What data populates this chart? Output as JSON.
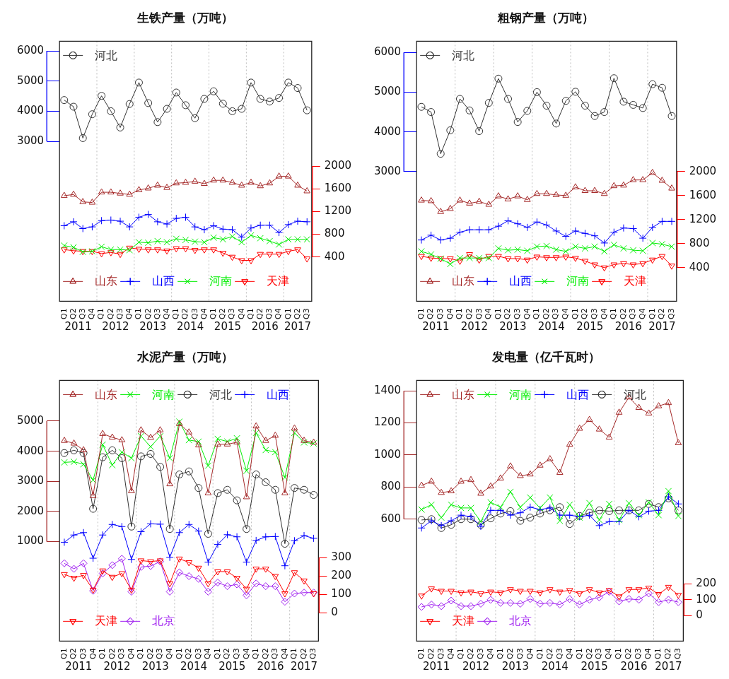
{
  "chart_data": [
    {
      "type": "line",
      "title": "生铁产量（万吨）",
      "categories": [
        "Q1",
        "Q2",
        "Q3",
        "Q4",
        "Q1",
        "Q2",
        "Q3",
        "Q4",
        "Q1",
        "Q2",
        "Q3",
        "Q4",
        "Q1",
        "Q2",
        "Q3",
        "Q4",
        "Q1",
        "Q2",
        "Q3",
        "Q4",
        "Q1",
        "Q2",
        "Q3",
        "Q4",
        "Q1",
        "Q2",
        "Q3"
      ],
      "series": [
        {
          "name": "河北",
          "color": "#333333",
          "marker": "circle",
          "values": [
            4370,
            4150,
            3110,
            3900,
            4510,
            4000,
            3460,
            4240,
            4950,
            4270,
            3640,
            4080,
            4620,
            4200,
            3770,
            4410,
            4660,
            4250,
            4000,
            4080,
            4950,
            4410,
            4320,
            4440,
            4950,
            4770,
            4030
          ]
        },
        {
          "name": "山东",
          "color": "#a52a2a",
          "marker": "triangle",
          "axis": "y2",
          "values": [
            1480,
            1500,
            1370,
            1360,
            1540,
            1540,
            1520,
            1500,
            1580,
            1610,
            1660,
            1620,
            1700,
            1710,
            1730,
            1690,
            1750,
            1750,
            1710,
            1660,
            1710,
            1650,
            1700,
            1820,
            1820,
            1660,
            1560
          ]
        },
        {
          "name": "山西",
          "color": "#0000ff",
          "marker": "cross",
          "axis": "y2",
          "values": [
            950,
            1020,
            900,
            930,
            1040,
            1050,
            1030,
            930,
            1100,
            1150,
            1020,
            980,
            1080,
            1100,
            930,
            880,
            950,
            890,
            880,
            750,
            910,
            960,
            960,
            830,
            970,
            1030,
            1020
          ]
        },
        {
          "name": "河南",
          "color": "#00ee00",
          "marker": "x",
          "axis": "y2",
          "values": [
            600,
            570,
            490,
            500,
            580,
            530,
            530,
            520,
            660,
            650,
            680,
            660,
            720,
            700,
            670,
            660,
            740,
            710,
            760,
            660,
            780,
            730,
            680,
            620,
            710,
            710,
            710
          ]
        },
        {
          "name": "天津",
          "color": "#ff0000",
          "marker": "triangle-down",
          "axis": "y2",
          "values": [
            530,
            510,
            500,
            500,
            460,
            480,
            450,
            560,
            540,
            530,
            530,
            510,
            550,
            550,
            520,
            530,
            530,
            470,
            400,
            340,
            340,
            450,
            450,
            450,
            500,
            530,
            370
          ]
        }
      ],
      "ylim": [
        -2300,
        6320
      ],
      "yticks": [
        3000,
        4000,
        5000,
        6000
      ],
      "y2lim": [
        -380,
        4200
      ],
      "y2ticks": [
        400,
        800,
        1200,
        1600,
        2000
      ],
      "grid": "x",
      "legend": "top left",
      "annotations": [
        "2011",
        "2012",
        "2013",
        "2014",
        "2015",
        "2016",
        "2017"
      ]
    },
    {
      "type": "line",
      "title": "粗钢产量（万吨）",
      "categories": [
        "Q1",
        "Q2",
        "Q3",
        "Q4",
        "Q1",
        "Q2",
        "Q3",
        "Q4",
        "Q1",
        "Q2",
        "Q3",
        "Q4",
        "Q1",
        "Q2",
        "Q3",
        "Q4",
        "Q1",
        "Q2",
        "Q3",
        "Q4",
        "Q1",
        "Q2",
        "Q3",
        "Q4",
        "Q1",
        "Q2",
        "Q3"
      ],
      "series": [
        {
          "name": "河北",
          "color": "#333333",
          "marker": "circle",
          "values": [
            4630,
            4500,
            3450,
            4040,
            4830,
            4540,
            4020,
            4730,
            5340,
            4830,
            4250,
            4530,
            5000,
            4660,
            4210,
            4780,
            5010,
            4660,
            4400,
            4500,
            5350,
            4760,
            4680,
            4600,
            5200,
            5110,
            4400
          ]
        },
        {
          "name": "山东",
          "color": "#a52a2a",
          "marker": "triangle",
          "axis": "y2",
          "values": [
            1520,
            1510,
            1330,
            1380,
            1520,
            1470,
            1500,
            1450,
            1590,
            1540,
            1590,
            1530,
            1630,
            1630,
            1610,
            1600,
            1740,
            1680,
            1680,
            1630,
            1760,
            1770,
            1860,
            1860,
            1980,
            1850,
            1720
          ]
        },
        {
          "name": "山西",
          "color": "#0000ff",
          "marker": "cross",
          "axis": "y2",
          "values": [
            860,
            940,
            860,
            890,
            990,
            1030,
            1030,
            1030,
            1090,
            1180,
            1130,
            1070,
            1160,
            1110,
            1010,
            920,
            1010,
            970,
            930,
            810,
            990,
            1060,
            1050,
            890,
            1070,
            1170,
            1170
          ]
        },
        {
          "name": "河南",
          "color": "#00ee00",
          "marker": "x",
          "axis": "y2",
          "values": [
            670,
            620,
            550,
            460,
            560,
            560,
            560,
            560,
            720,
            690,
            700,
            680,
            750,
            760,
            700,
            670,
            750,
            720,
            750,
            670,
            780,
            720,
            690,
            680,
            810,
            790,
            750
          ]
        },
        {
          "name": "天津",
          "color": "#ff0000",
          "marker": "triangle-down",
          "axis": "y2",
          "values": [
            590,
            560,
            550,
            550,
            510,
            620,
            530,
            590,
            590,
            550,
            550,
            530,
            580,
            570,
            570,
            580,
            560,
            510,
            450,
            400,
            450,
            470,
            450,
            470,
            530,
            590,
            430
          ]
        }
      ],
      "ylim": [
        -260,
        6280
      ],
      "yticks": [
        3000,
        4000,
        5000,
        6000
      ],
      "y2lim": [
        -160,
        4170
      ],
      "y2ticks": [
        400,
        800,
        1200,
        1600,
        2000
      ],
      "grid": "x",
      "legend": "top left",
      "annotations": [
        "2011",
        "2012",
        "2013",
        "2014",
        "2015",
        "2016",
        "2017"
      ]
    },
    {
      "type": "line",
      "title": "水泥产量（万吨）",
      "categories": [
        "Q1",
        "Q2",
        "Q3",
        "Q4",
        "Q1",
        "Q2",
        "Q3",
        "Q4",
        "Q1",
        "Q2",
        "Q3",
        "Q4",
        "Q1",
        "Q2",
        "Q3",
        "Q4",
        "Q1",
        "Q2",
        "Q3",
        "Q4",
        "Q1",
        "Q2",
        "Q3",
        "Q4",
        "Q1",
        "Q2",
        "Q3"
      ],
      "series": [
        {
          "name": "山东",
          "color": "#a52a2a",
          "marker": "triangle",
          "values": [
            4350,
            4260,
            4040,
            2520,
            4580,
            4460,
            4370,
            2680,
            4700,
            4450,
            4700,
            2910,
            4910,
            4630,
            4200,
            2610,
            4230,
            4230,
            4300,
            2480,
            4830,
            4350,
            4520,
            2610,
            4760,
            4350,
            4290
          ]
        },
        {
          "name": "河南",
          "color": "#00ee00",
          "marker": "x",
          "values": [
            3630,
            3650,
            3570,
            3040,
            4220,
            3540,
            3970,
            3770,
            4500,
            4150,
            4500,
            3770,
            4980,
            4370,
            4320,
            3520,
            4410,
            4320,
            4430,
            3350,
            4610,
            4040,
            3970,
            3130,
            4610,
            4290,
            4260
          ]
        },
        {
          "name": "河北",
          "color": "#333333",
          "marker": "circle",
          "values": [
            3940,
            4030,
            3940,
            2090,
            3800,
            4030,
            3770,
            1500,
            3830,
            3910,
            3480,
            1420,
            3230,
            3330,
            2780,
            1260,
            2610,
            2720,
            2370,
            1420,
            3230,
            2970,
            2720,
            930,
            2780,
            2720,
            2550
          ]
        },
        {
          "name": "山西",
          "color": "#0000ff",
          "marker": "cross",
          "values": [
            980,
            1220,
            1300,
            450,
            1220,
            1570,
            1500,
            410,
            1330,
            1590,
            1580,
            480,
            1300,
            1570,
            1350,
            320,
            910,
            1230,
            1160,
            320,
            1040,
            1160,
            1170,
            200,
            1030,
            1200,
            1110
          ]
        },
        {
          "name": "天津",
          "color": "#ff0000",
          "marker": "triangle-down",
          "axis": "y2",
          "values": [
            210,
            190,
            205,
            125,
            230,
            195,
            215,
            125,
            285,
            280,
            285,
            160,
            295,
            275,
            245,
            160,
            225,
            225,
            190,
            130,
            240,
            240,
            200,
            105,
            220,
            175,
            105
          ]
        },
        {
          "name": "北京",
          "color": "#a020f0",
          "marker": "diamond",
          "axis": "y2",
          "values": [
            270,
            240,
            270,
            120,
            215,
            260,
            295,
            115,
            250,
            255,
            280,
            115,
            220,
            200,
            185,
            115,
            165,
            145,
            155,
            95,
            160,
            145,
            145,
            60,
            105,
            110,
            110
          ]
        }
      ],
      "ylim": [
        -2300,
        6350
      ],
      "yticks": [
        1000,
        2000,
        3000,
        4000,
        5000
      ],
      "y2lim": [
        -155,
        1270
      ],
      "y2ticks": [
        0,
        100,
        200,
        300
      ],
      "grid": "x",
      "legend": "top left",
      "annotations": [
        "2011",
        "2012",
        "2013",
        "2014",
        "2015",
        "2016",
        "2017"
      ]
    },
    {
      "type": "line",
      "title": "发电量（亿千瓦时）",
      "categories": [
        "Q1",
        "Q2",
        "Q3",
        "Q4",
        "Q1",
        "Q2",
        "Q3",
        "Q4",
        "Q1",
        "Q2",
        "Q3",
        "Q4",
        "Q1",
        "Q2",
        "Q3",
        "Q4",
        "Q1",
        "Q2",
        "Q3",
        "Q4",
        "Q1",
        "Q2",
        "Q3",
        "Q4",
        "Q1",
        "Q2",
        "Q3"
      ],
      "series": [
        {
          "name": "山东",
          "color": "#a52a2a",
          "marker": "triangle",
          "values": [
            810,
            835,
            765,
            775,
            835,
            845,
            760,
            805,
            855,
            930,
            870,
            880,
            935,
            975,
            890,
            1065,
            1165,
            1220,
            1160,
            1110,
            1265,
            1360,
            1295,
            1260,
            1305,
            1325,
            1075
          ]
        },
        {
          "name": "河南",
          "color": "#00ee00",
          "marker": "x",
          "values": [
            660,
            690,
            610,
            690,
            670,
            670,
            585,
            705,
            675,
            770,
            675,
            735,
            670,
            735,
            590,
            690,
            610,
            700,
            595,
            695,
            595,
            700,
            625,
            705,
            625,
            775,
            620
          ]
        },
        {
          "name": "山西",
          "color": "#0000ff",
          "marker": "cross",
          "values": [
            545,
            590,
            560,
            590,
            625,
            615,
            555,
            655,
            655,
            625,
            640,
            675,
            660,
            670,
            625,
            625,
            615,
            625,
            560,
            585,
            585,
            655,
            615,
            650,
            655,
            740,
            695
          ]
        },
        {
          "name": "河北",
          "color": "#333333",
          "marker": "circle",
          "values": [
            595,
            600,
            545,
            565,
            600,
            600,
            565,
            605,
            635,
            650,
            590,
            610,
            635,
            655,
            675,
            570,
            620,
            640,
            655,
            650,
            655,
            655,
            655,
            695,
            675,
            730,
            655
          ]
        },
        {
          "name": "天津",
          "color": "#ff0000",
          "marker": "triangle-down",
          "axis": "y2",
          "values": [
            125,
            170,
            155,
            155,
            145,
            150,
            140,
            150,
            145,
            165,
            155,
            155,
            145,
            165,
            150,
            160,
            140,
            165,
            145,
            160,
            120,
            165,
            165,
            175,
            135,
            180,
            130
          ]
        },
        {
          "name": "北京",
          "color": "#a020f0",
          "marker": "diamond",
          "axis": "y2",
          "values": [
            55,
            70,
            60,
            95,
            60,
            60,
            75,
            100,
            80,
            80,
            75,
            105,
            75,
            80,
            70,
            105,
            70,
            100,
            115,
            150,
            90,
            105,
            100,
            140,
            85,
            100,
            85
          ]
        }
      ],
      "ylim": [
        -160,
        1465
      ],
      "yticks": [
        600,
        800,
        1000,
        1200,
        1400
      ],
      "y2lim": [
        -160,
        1480
      ],
      "y2ticks": [
        0,
        100,
        200
      ],
      "grid": "x",
      "legend": "top left",
      "annotations": [
        "2011",
        "2012",
        "2013",
        "2014",
        "2015",
        "2016",
        "2017"
      ]
    }
  ]
}
